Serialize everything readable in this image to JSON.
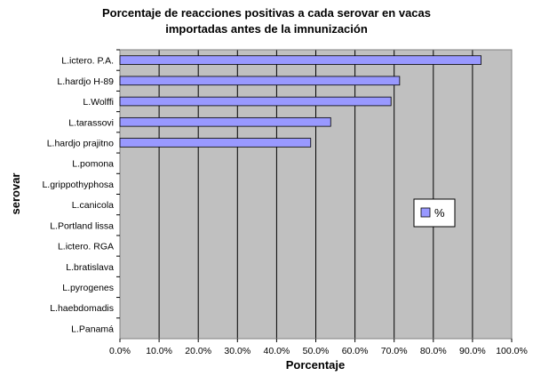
{
  "chart_data": {
    "type": "bar",
    "orientation": "horizontal",
    "title_lines": [
      "Porcentaje de reacciones positivas a cada serovar en vacas",
      "importadas antes de la imnunización"
    ],
    "xlabel": "Porcentaje",
    "ylabel": "serovar",
    "categories": [
      "L.ictero. P.A.",
      "L.hardjo H-89",
      "L.Wolffi",
      "L.tarassovi",
      "L.hardjo prajitno",
      "L.pomona",
      "L.grippothyphosa",
      "L.canicola",
      "L.Portland lissa",
      "L.ictero. RGA",
      "L.bratislava",
      "L.pyrogenes",
      "L.haebdomadis",
      "L.Panamá"
    ],
    "series": [
      {
        "name": "%",
        "color": "#9999ff",
        "values": [
          0.922,
          0.714,
          0.692,
          0.538,
          0.487,
          0,
          0,
          0,
          0,
          0,
          0,
          0,
          0,
          0
        ]
      }
    ],
    "xlim": [
      0,
      1
    ],
    "xticks": [
      0,
      0.1,
      0.2,
      0.3,
      0.4,
      0.5,
      0.6,
      0.7,
      0.8,
      0.9,
      1.0
    ],
    "xtick_labels": [
      "0.0%",
      "10.0%",
      "20.0%",
      "30.0%",
      "40.0%",
      "50.0%",
      "60.0%",
      "70.0%",
      "80.0%",
      "90.0%",
      "100.0%"
    ],
    "grid": "vertical",
    "plot_background": "#c0c0c0",
    "legend": {
      "position": "right",
      "label": "%"
    }
  }
}
